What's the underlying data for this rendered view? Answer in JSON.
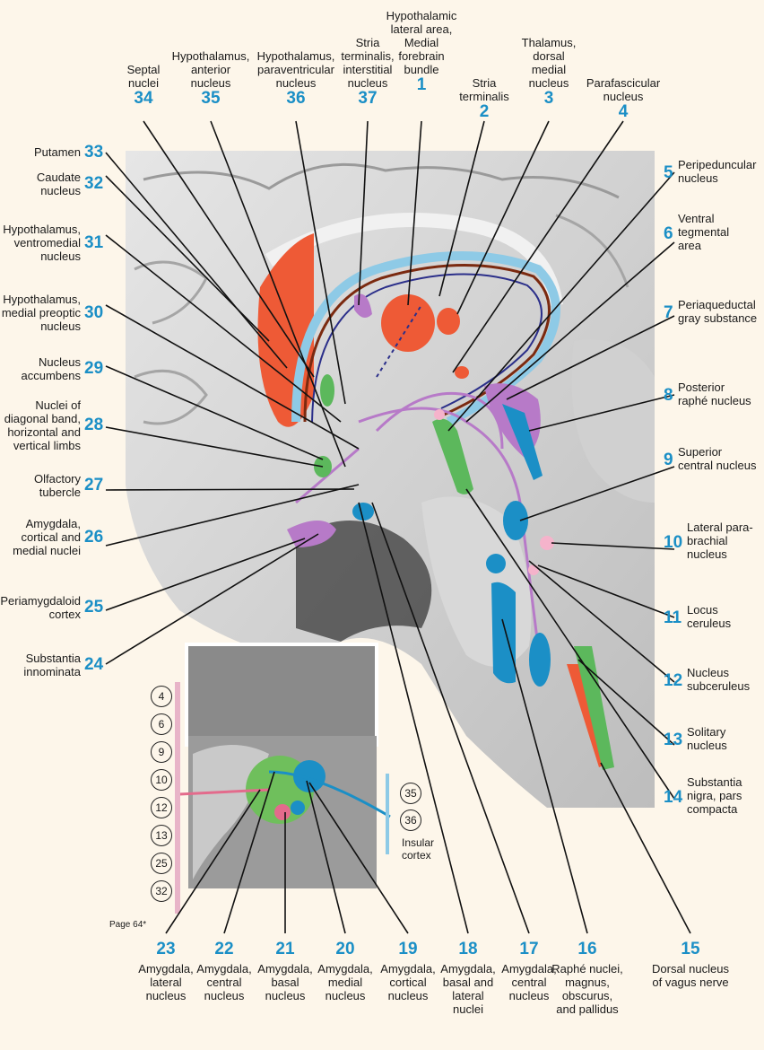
{
  "top_labels": [
    {
      "id": "34",
      "text": [
        "Septal",
        "nuclei"
      ]
    },
    {
      "id": "35",
      "text": [
        "Hypothalamus,",
        "anterior",
        "nucleus"
      ]
    },
    {
      "id": "36",
      "text": [
        "Hypothalamus,",
        "paraventricular",
        "nucleus"
      ]
    },
    {
      "id": "37",
      "text": [
        "Stria",
        "terminalis,",
        "interstitial",
        "nucleus"
      ]
    },
    {
      "id": "1",
      "text": [
        "Hypothalamic",
        "lateral area,",
        "Medial",
        "forebrain",
        "bundle"
      ]
    },
    {
      "id": "2",
      "text": [
        "Stria",
        "terminalis"
      ]
    },
    {
      "id": "3",
      "text": [
        "Thalamus,",
        "dorsal",
        "medial",
        "nucleus"
      ]
    },
    {
      "id": "4",
      "text": [
        "Parafascicular",
        "nucleus"
      ]
    }
  ],
  "left_labels": [
    {
      "id": "33",
      "text": [
        "Putamen"
      ]
    },
    {
      "id": "32",
      "text": [
        "Caudate",
        "nucleus"
      ]
    },
    {
      "id": "31",
      "text": [
        "Hypothalamus,",
        "ventromedial",
        "nucleus"
      ]
    },
    {
      "id": "30",
      "text": [
        "Hypothalamus,",
        "medial preoptic",
        "nucleus"
      ]
    },
    {
      "id": "29",
      "text": [
        "Nucleus",
        "accumbens"
      ]
    },
    {
      "id": "28",
      "text": [
        "Nuclei of",
        "diagonal band,",
        "horizontal and",
        "vertical limbs"
      ]
    },
    {
      "id": "27",
      "text": [
        "Olfactory",
        "tubercle"
      ]
    },
    {
      "id": "26",
      "text": [
        "Amygdala,",
        "cortical and",
        "medial nuclei"
      ]
    },
    {
      "id": "25",
      "text": [
        "Periamygdaloid",
        "cortex"
      ]
    },
    {
      "id": "24",
      "text": [
        "Substantia",
        "innominata"
      ]
    }
  ],
  "right_labels": [
    {
      "id": "5",
      "text": [
        "Peripeduncular",
        "nucleus"
      ]
    },
    {
      "id": "6",
      "text": [
        "Ventral",
        "tegmental",
        "area"
      ]
    },
    {
      "id": "7",
      "text": [
        "Periaqueductal",
        "gray substance"
      ]
    },
    {
      "id": "8",
      "text": [
        "Posterior",
        "raphé nucleus"
      ]
    },
    {
      "id": "9",
      "text": [
        "Superior",
        "central nucleus"
      ]
    },
    {
      "id": "10",
      "text": [
        "Lateral para-",
        "brachial",
        "nucleus"
      ]
    },
    {
      "id": "11",
      "text": [
        "Locus",
        "ceruleus"
      ]
    },
    {
      "id": "12",
      "text": [
        "Nucleus",
        "subceruleus"
      ]
    },
    {
      "id": "13",
      "text": [
        "Solitary",
        "nucleus"
      ]
    },
    {
      "id": "14",
      "text": [
        "Substantia",
        "nigra, pars",
        "compacta"
      ]
    }
  ],
  "bottom_labels": [
    {
      "id": "23",
      "text": [
        "Amygdala,",
        "lateral",
        "nucleus"
      ]
    },
    {
      "id": "22",
      "text": [
        "Amygdala,",
        "central",
        "nucleus"
      ]
    },
    {
      "id": "21",
      "text": [
        "Amygdala,",
        "basal",
        "nucleus"
      ]
    },
    {
      "id": "20",
      "text": [
        "Amygdala,",
        "medial",
        "nucleus"
      ]
    },
    {
      "id": "19",
      "text": [
        "Amygdala,",
        "cortical",
        "nucleus"
      ]
    },
    {
      "id": "18",
      "text": [
        "Amygdala,",
        "basal and",
        "lateral",
        "nuclei"
      ]
    },
    {
      "id": "17",
      "text": [
        "Amygdala,",
        "central",
        "nucleus"
      ]
    },
    {
      "id": "16",
      "text": [
        "Raphé nuclei,",
        "magnus,",
        "obscurus,",
        "and pallidus"
      ]
    },
    {
      "id": "15",
      "text": [
        "Dorsal nucleus",
        "of vagus nerve"
      ]
    }
  ],
  "inset": {
    "left_circles": [
      "4",
      "6",
      "9",
      "10",
      "12",
      "13",
      "25",
      "32"
    ],
    "right_circles": [
      "35",
      "36"
    ],
    "right_text": [
      "Insular",
      "cortex"
    ],
    "page_ref": "Page 64*"
  },
  "colors": {
    "number": "#1b8fc6",
    "orange": "#ee5a36",
    "purple": "#b77ac8",
    "light_purple": "#d9a8e0",
    "green": "#5cb85c",
    "blue": "#1b8fc6",
    "brown": "#7b2a10",
    "pink": "#e36b8c",
    "navy": "#2b2f8a"
  }
}
